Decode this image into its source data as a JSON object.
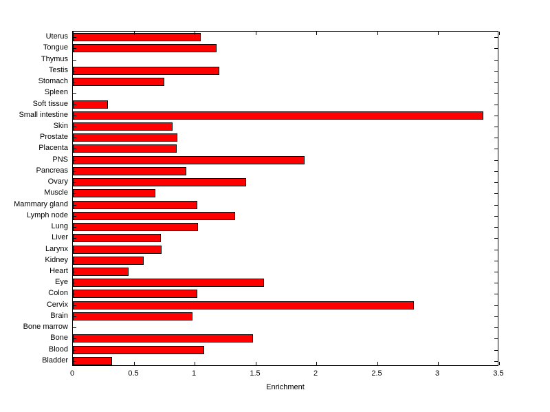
{
  "figure": {
    "background": "#ffffff"
  },
  "chart_data": {
    "type": "bar",
    "orientation": "horizontal",
    "title": "",
    "xlabel": "Enrichment",
    "ylabel": "",
    "xlim": [
      0,
      3.5
    ],
    "xticks": [
      0,
      0.5,
      1,
      1.5,
      2,
      2.5,
      3,
      3.5
    ],
    "xtick_labels": [
      "0",
      "0.5",
      "1",
      "1.5",
      "2",
      "2.5",
      "3",
      "3.5"
    ],
    "grid": false,
    "legend": "none",
    "bar_color": "#ff0000",
    "bar_edge_color": "#000000",
    "categories": [
      "Uterus",
      "Tongue",
      "Thymus",
      "Testis",
      "Stomach",
      "Spleen",
      "Soft tissue",
      "Small intestine",
      "Skin",
      "Prostate",
      "Placenta",
      "PNS",
      "Pancreas",
      "Ovary",
      "Muscle",
      "Mammary gland",
      "Lymph node",
      "Lung",
      "Liver",
      "Larynx",
      "Kidney",
      "Heart",
      "Eye",
      "Colon",
      "Cervix",
      "Brain",
      "Bone marrow",
      "Bone",
      "Blood",
      "Bladder"
    ],
    "values": [
      1.05,
      1.18,
      0,
      1.2,
      0.75,
      0,
      0.29,
      3.37,
      0.82,
      0.86,
      0.85,
      1.9,
      0.93,
      1.42,
      0.68,
      1.02,
      1.33,
      1.03,
      0.72,
      0.73,
      0.58,
      0.46,
      1.57,
      1.02,
      2.8,
      0.98,
      0,
      1.48,
      1.08,
      0.32
    ]
  }
}
